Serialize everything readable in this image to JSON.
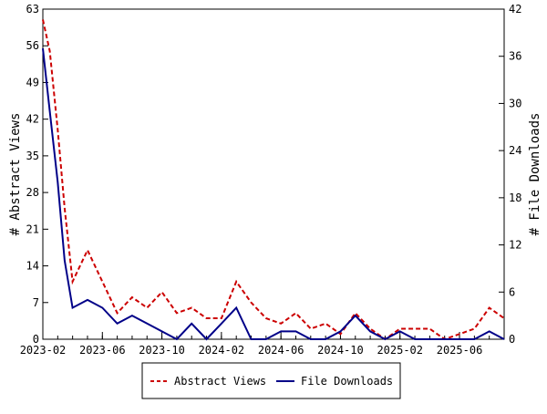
{
  "chart_data": {
    "type": "line",
    "x_tick_labels": [
      "2023-02",
      "2023-06",
      "2023-10",
      "2024-02",
      "2024-06",
      "2024-10",
      "2025-02",
      "2025-06"
    ],
    "x": [
      "2023-02",
      "2023-03",
      "2023-04",
      "2023-05",
      "2023-06",
      "2023-07",
      "2023-08",
      "2023-09",
      "2023-10",
      "2023-11",
      "2023-12",
      "2024-01",
      "2024-02",
      "2024-03",
      "2024-04",
      "2024-05",
      "2024-06",
      "2024-07",
      "2024-08",
      "2024-09",
      "2024-10",
      "2024-11",
      "2024-12",
      "2025-01",
      "2025-02",
      "2025-03",
      "2025-04",
      "2025-05",
      "2025-06",
      "2025-07",
      "2025-08",
      "2025-09"
    ],
    "left_axis": {
      "label": "# Abstract Views",
      "ylim": [
        0,
        63
      ],
      "ticks": [
        "0",
        "7",
        "14",
        "21",
        "28",
        "35",
        "42",
        "49",
        "56",
        "63"
      ]
    },
    "right_axis": {
      "label": "# File Downloads",
      "ylim": [
        0,
        42
      ],
      "ticks": [
        "0",
        "6",
        "12",
        "18",
        "24",
        "30",
        "36",
        "42"
      ]
    },
    "series": [
      {
        "name": "Abstract Views",
        "axis": "left",
        "color": "#cc0000",
        "style": "dashed",
        "x": [
          "2023-02",
          "2023-02-15",
          "2023-03",
          "2023-03-15",
          "2023-04",
          "2023-05",
          "2023-06",
          "2023-07",
          "2023-08",
          "2023-09",
          "2023-10",
          "2023-11",
          "2023-12",
          "2024-01",
          "2024-02",
          "2024-03",
          "2024-04",
          "2024-05",
          "2024-06",
          "2024-07",
          "2024-08",
          "2024-09",
          "2024-10",
          "2024-11",
          "2024-12",
          "2025-01",
          "2025-02",
          "2025-03",
          "2025-04",
          "2025-05",
          "2025-06",
          "2025-07",
          "2025-08",
          "2025-09"
        ],
        "values": [
          61,
          55,
          40,
          25,
          11,
          17,
          11,
          5,
          8,
          6,
          9,
          5,
          6,
          4,
          4,
          11,
          7,
          4,
          3,
          5,
          2,
          3,
          1,
          5,
          2,
          0,
          2,
          2,
          2,
          0,
          1,
          2,
          6,
          4
        ]
      },
      {
        "name": "File Downloads",
        "axis": "right",
        "color": "#000088",
        "style": "solid",
        "x": [
          "2023-02",
          "2023-02-15",
          "2023-03",
          "2023-03-15",
          "2023-04",
          "2023-05",
          "2023-06",
          "2023-07",
          "2023-08",
          "2023-09",
          "2023-10",
          "2023-11",
          "2023-12",
          "2024-01",
          "2024-02",
          "2024-03",
          "2024-04",
          "2024-05",
          "2024-06",
          "2024-07",
          "2024-08",
          "2024-09",
          "2024-10",
          "2024-11",
          "2024-12",
          "2025-01",
          "2025-02",
          "2025-03",
          "2025-04",
          "2025-05",
          "2025-06",
          "2025-07",
          "2025-08",
          "2025-09"
        ],
        "values": [
          37,
          29,
          20,
          10,
          4,
          5,
          4,
          2,
          3,
          2,
          1,
          0,
          2,
          0,
          2,
          4,
          0,
          0,
          1,
          1,
          0,
          0,
          1,
          3,
          1,
          0,
          1,
          0,
          0,
          0,
          0,
          0,
          1,
          0
        ]
      }
    ],
    "legend_position": "bottom",
    "grid": false
  },
  "colors": {
    "views": "#cc0000",
    "downloads": "#000088",
    "axis": "#000000"
  }
}
